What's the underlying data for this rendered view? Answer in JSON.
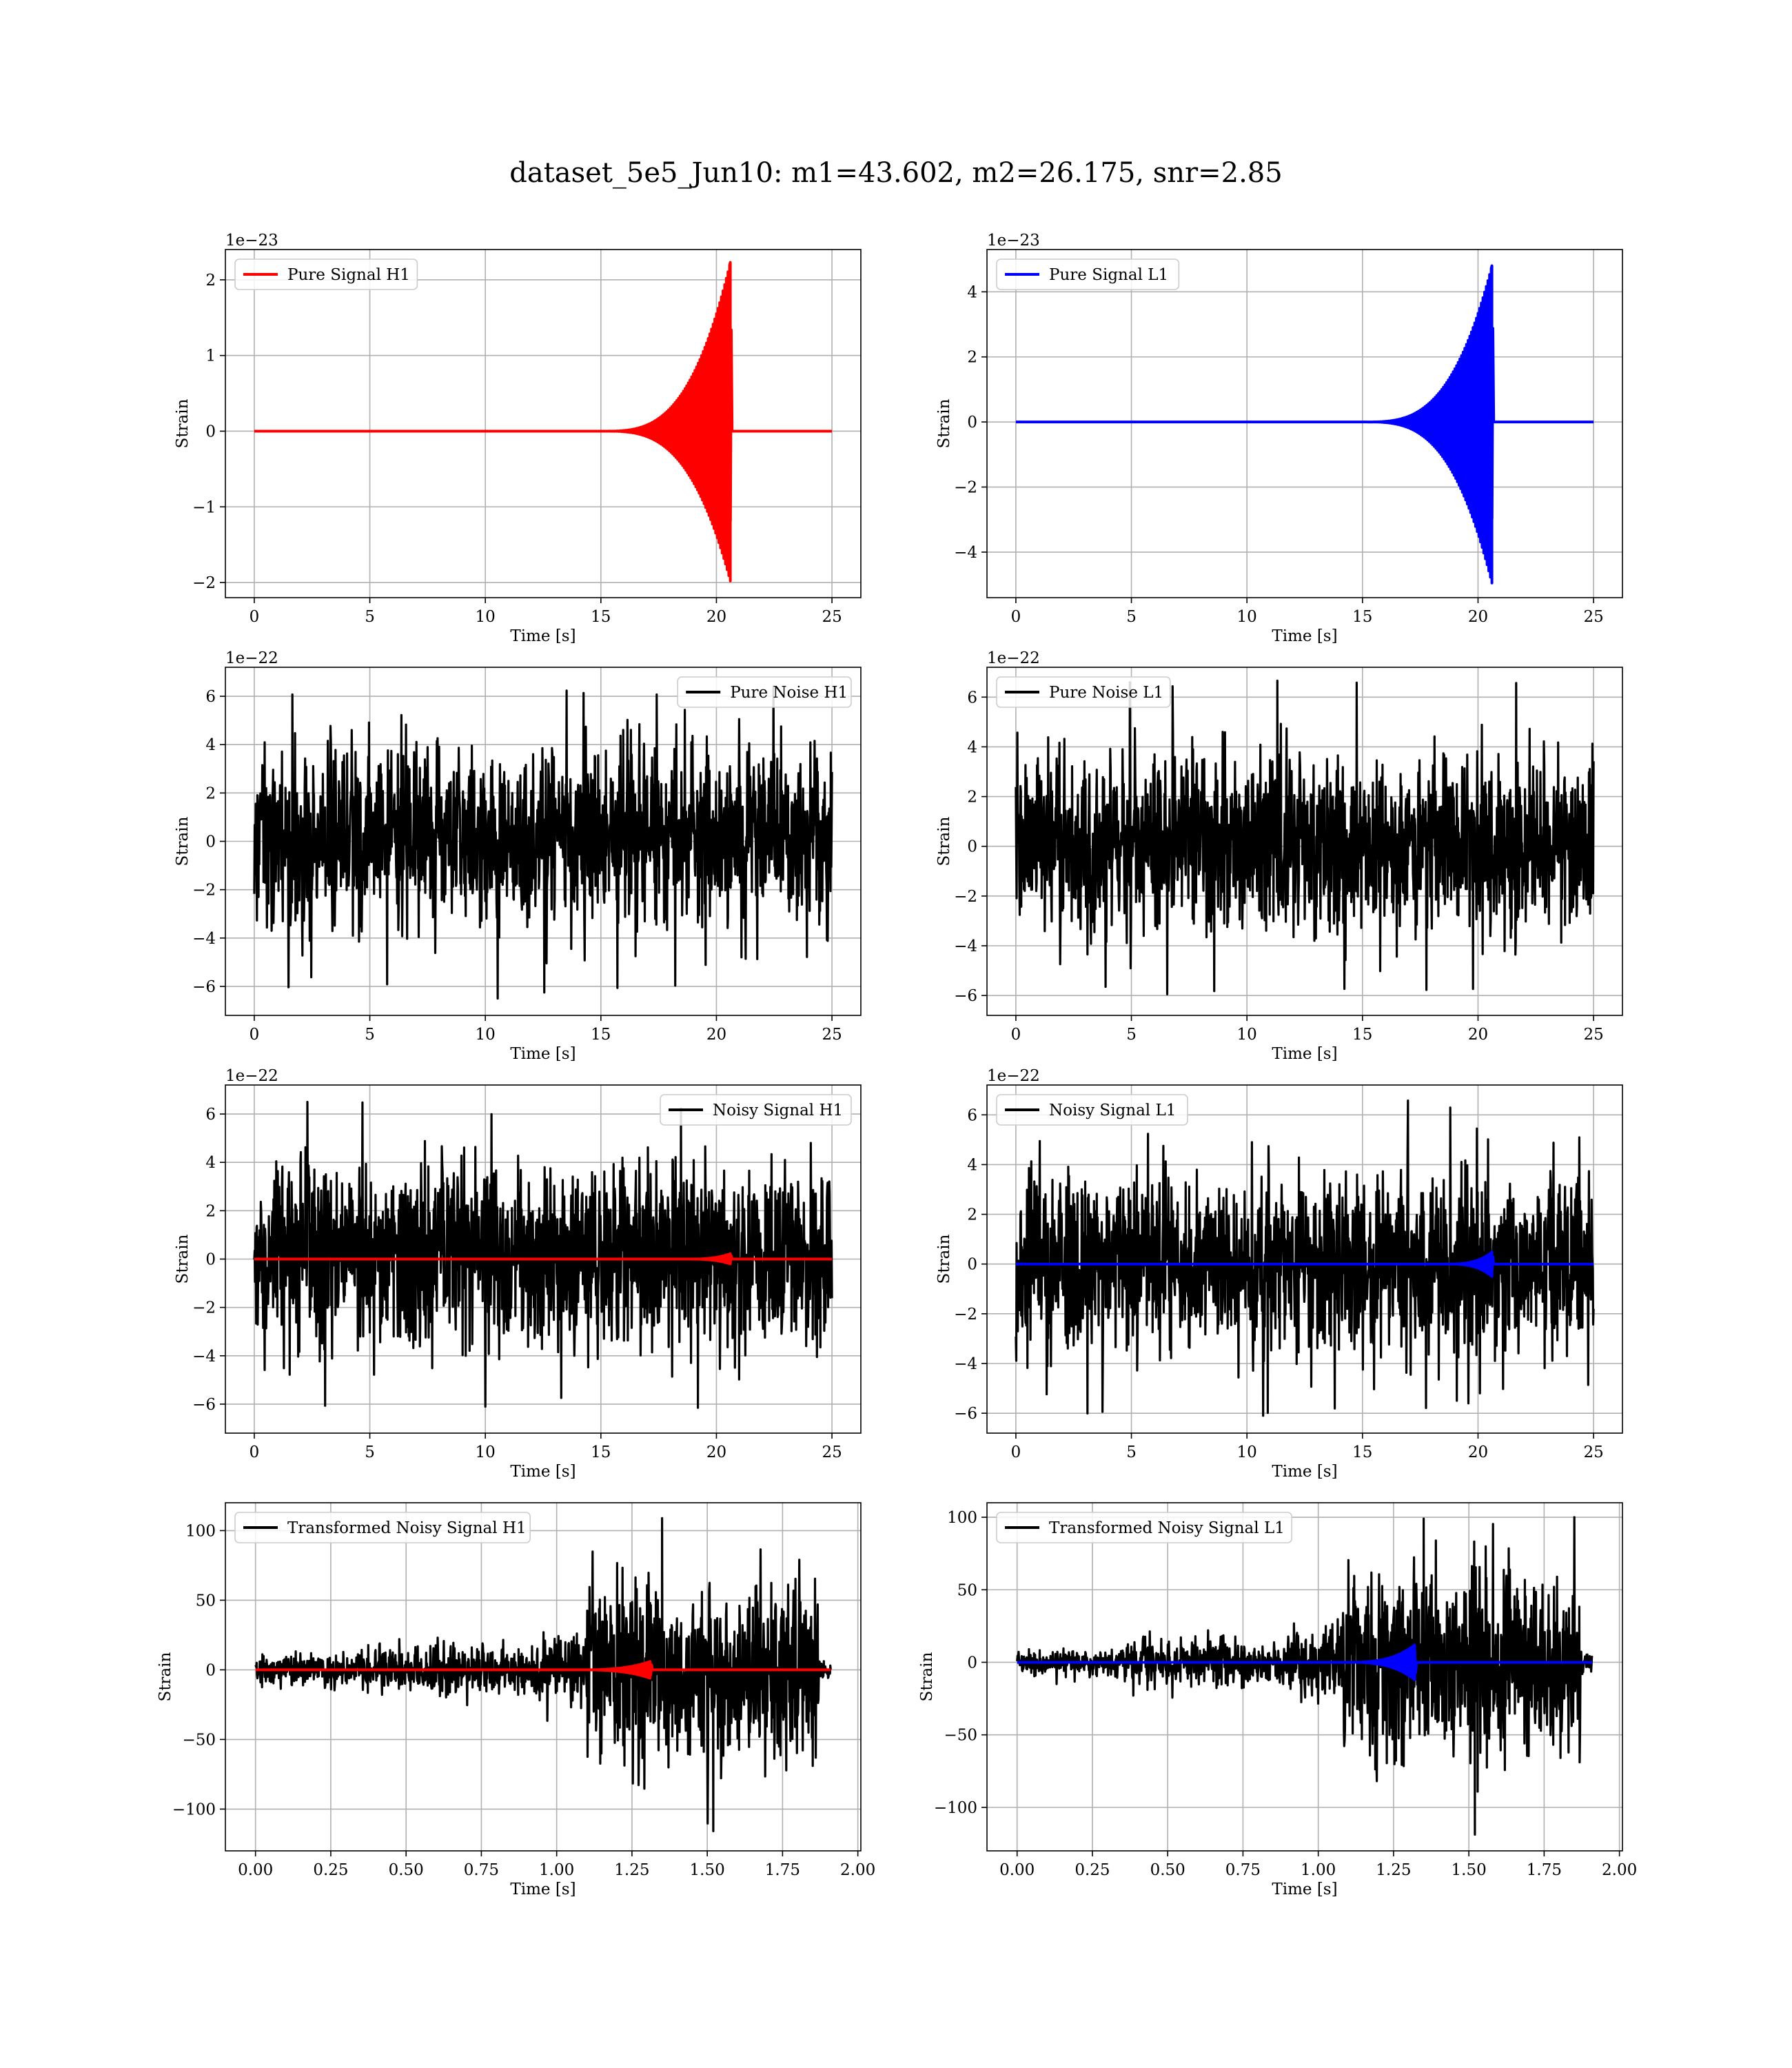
{
  "figure": {
    "title": "dataset_5e5_Jun10: m1=43.602, m2=26.175, snr=2.85"
  },
  "chart_data": [
    {
      "id": "pure-signal-h1",
      "type": "line",
      "xlabel": "Time [s]",
      "ylabel": "Strain",
      "offset_text": "1e−23",
      "legend": "top-left",
      "grid": true,
      "xlim": [
        -1.25,
        26.25
      ],
      "ylim": [
        -2.2,
        2.4
      ],
      "xticks": [
        0,
        5,
        10,
        15,
        20,
        25
      ],
      "xtick_labels": [
        "0",
        "5",
        "10",
        "15",
        "20",
        "25"
      ],
      "yticks": [
        -2,
        -1,
        0,
        1,
        2
      ],
      "ytick_labels": [
        "−2",
        "−1",
        "0",
        "1",
        "2"
      ],
      "series": [
        {
          "name": "Pure Signal H1",
          "color": "#ff0000",
          "style": "chirp",
          "t_start": 0,
          "t_end": 25,
          "t_merger": 20.6,
          "t_onset": 15.0,
          "peak_pos": 2.23,
          "peak_neg": -1.98
        }
      ]
    },
    {
      "id": "pure-signal-l1",
      "type": "line",
      "xlabel": "Time [s]",
      "ylabel": "Strain",
      "offset_text": "1e−23",
      "legend": "top-left",
      "grid": true,
      "xlim": [
        -1.25,
        26.25
      ],
      "ylim": [
        -5.4,
        5.3
      ],
      "xticks": [
        0,
        5,
        10,
        15,
        20,
        25
      ],
      "xtick_labels": [
        "0",
        "5",
        "10",
        "15",
        "20",
        "25"
      ],
      "yticks": [
        -4,
        -2,
        0,
        2,
        4
      ],
      "ytick_labels": [
        "−4",
        "−2",
        "0",
        "2",
        "4"
      ],
      "series": [
        {
          "name": "Pure Signal L1",
          "color": "#0000ff",
          "style": "chirp",
          "t_start": 0,
          "t_end": 25,
          "t_merger": 20.6,
          "t_onset": 15.0,
          "peak_pos": 4.8,
          "peak_neg": -4.95
        }
      ]
    },
    {
      "id": "pure-noise-h1",
      "type": "line",
      "xlabel": "Time [s]",
      "ylabel": "Strain",
      "offset_text": "1e−22",
      "legend": "top-right",
      "grid": true,
      "xlim": [
        -1.25,
        26.25
      ],
      "ylim": [
        -7.2,
        7.2
      ],
      "xticks": [
        0,
        5,
        10,
        15,
        20,
        25
      ],
      "xtick_labels": [
        "0",
        "5",
        "10",
        "15",
        "20",
        "25"
      ],
      "yticks": [
        -6,
        -4,
        -2,
        0,
        2,
        4,
        6
      ],
      "ytick_labels": [
        "−6",
        "−4",
        "−2",
        "0",
        "2",
        "4",
        "6"
      ],
      "series": [
        {
          "name": "Pure Noise H1",
          "color": "#000000",
          "style": "noise",
          "t_start": 0,
          "t_end": 25,
          "band": [
            -3.9,
            4.2
          ],
          "peak_pos": 6.6,
          "peak_neg": -6.5
        }
      ]
    },
    {
      "id": "pure-noise-l1",
      "type": "line",
      "xlabel": "Time [s]",
      "ylabel": "Strain",
      "offset_text": "1e−22",
      "legend": "top-left",
      "grid": true,
      "xlim": [
        -1.25,
        26.25
      ],
      "ylim": [
        -6.8,
        7.2
      ],
      "xticks": [
        0,
        5,
        10,
        15,
        20,
        25
      ],
      "xtick_labels": [
        "0",
        "5",
        "10",
        "15",
        "20",
        "25"
      ],
      "yticks": [
        -6,
        -4,
        -2,
        0,
        2,
        4,
        6
      ],
      "ytick_labels": [
        "−6",
        "−4",
        "−2",
        "0",
        "2",
        "4",
        "6"
      ],
      "series": [
        {
          "name": "Pure Noise L1",
          "color": "#000000",
          "style": "noise",
          "t_start": 0,
          "t_end": 25,
          "band": [
            -3.8,
            3.9
          ],
          "peak_pos": 6.9,
          "peak_neg": -6.1
        }
      ]
    },
    {
      "id": "noisy-signal-h1",
      "type": "line",
      "xlabel": "Time [s]",
      "ylabel": "Strain",
      "offset_text": "1e−22",
      "legend": "top-right",
      "grid": true,
      "xlim": [
        -1.25,
        26.25
      ],
      "ylim": [
        -7.2,
        7.2
      ],
      "xticks": [
        0,
        5,
        10,
        15,
        20,
        25
      ],
      "xtick_labels": [
        "0",
        "5",
        "10",
        "15",
        "20",
        "25"
      ],
      "yticks": [
        -6,
        -4,
        -2,
        0,
        2,
        4,
        6
      ],
      "ytick_labels": [
        "−6",
        "−4",
        "−2",
        "0",
        "2",
        "4",
        "6"
      ],
      "series": [
        {
          "name": "Noisy Signal H1",
          "color": "#000000",
          "style": "noise",
          "t_start": 0,
          "t_end": 25,
          "band": [
            -3.9,
            4.2
          ],
          "peak_pos": 6.6,
          "peak_neg": -6.5
        },
        {
          "name": "",
          "color": "#ff0000",
          "style": "chirp",
          "t_start": 0,
          "t_end": 25,
          "t_merger": 20.6,
          "t_onset": 18.5,
          "peak_pos": 0.22,
          "peak_neg": -0.2
        }
      ]
    },
    {
      "id": "noisy-signal-l1",
      "type": "line",
      "xlabel": "Time [s]",
      "ylabel": "Strain",
      "offset_text": "1e−22",
      "legend": "top-left",
      "grid": true,
      "xlim": [
        -1.25,
        26.25
      ],
      "ylim": [
        -6.8,
        7.2
      ],
      "xticks": [
        0,
        5,
        10,
        15,
        20,
        25
      ],
      "xtick_labels": [
        "0",
        "5",
        "10",
        "15",
        "20",
        "25"
      ],
      "yticks": [
        -6,
        -4,
        -2,
        0,
        2,
        4,
        6
      ],
      "ytick_labels": [
        "−6",
        "−4",
        "−2",
        "0",
        "2",
        "4",
        "6"
      ],
      "series": [
        {
          "name": "Noisy Signal L1",
          "color": "#000000",
          "style": "noise",
          "t_start": 0,
          "t_end": 25,
          "band": [
            -3.8,
            3.9
          ],
          "peak_pos": 6.9,
          "peak_neg": -6.1
        },
        {
          "name": "",
          "color": "#0000ff",
          "style": "chirp",
          "t_start": 0,
          "t_end": 25,
          "t_merger": 20.6,
          "t_onset": 18.5,
          "peak_pos": 0.48,
          "peak_neg": -0.5
        }
      ]
    },
    {
      "id": "transformed-noisy-signal-h1",
      "type": "line",
      "xlabel": "Time [s]",
      "ylabel": "Strain",
      "offset_text": "",
      "legend": "top-left",
      "grid": true,
      "xlim": [
        -0.1,
        2.01
      ],
      "ylim": [
        -130,
        120
      ],
      "xticks": [
        0.0,
        0.25,
        0.5,
        0.75,
        1.0,
        1.25,
        1.5,
        1.75,
        2.0
      ],
      "xtick_labels": [
        "0.00",
        "0.25",
        "0.50",
        "0.75",
        "1.00",
        "1.25",
        "1.50",
        "1.75",
        "2.00"
      ],
      "yticks": [
        -100,
        -50,
        0,
        50,
        100
      ],
      "ytick_labels": [
        "−100",
        "−50",
        "0",
        "50",
        "100"
      ],
      "series": [
        {
          "name": "Transformed Noisy Signal H1",
          "color": "#000000",
          "style": "tnoise",
          "t_start": 0,
          "t_end": 1.91,
          "segments": [
            [
              0.0,
              0.35,
              9
            ],
            [
              0.35,
              0.92,
              15
            ],
            [
              0.92,
              1.1,
              24
            ],
            [
              1.1,
              1.87,
              60
            ],
            [
              1.87,
              1.91,
              6
            ]
          ],
          "peak_pos": 110,
          "peak_neg": -117
        },
        {
          "name": "",
          "color": "#ff0000",
          "style": "chirp",
          "t_start": 0,
          "t_end": 1.91,
          "t_merger": 1.31,
          "t_onset": 1.05,
          "peak_pos": 6,
          "peak_neg": -6
        }
      ]
    },
    {
      "id": "transformed-noisy-signal-l1",
      "type": "line",
      "xlabel": "Time [s]",
      "ylabel": "Strain",
      "offset_text": "",
      "legend": "top-left",
      "grid": true,
      "xlim": [
        -0.1,
        2.01
      ],
      "ylim": [
        -130,
        110
      ],
      "xticks": [
        0.0,
        0.25,
        0.5,
        0.75,
        1.0,
        1.25,
        1.5,
        1.75,
        2.0
      ],
      "xtick_labels": [
        "0.00",
        "0.25",
        "0.50",
        "0.75",
        "1.00",
        "1.25",
        "1.50",
        "1.75",
        "2.00"
      ],
      "yticks": [
        -100,
        -50,
        0,
        50,
        100
      ],
      "ytick_labels": [
        "−100",
        "−50",
        "0",
        "50",
        "100"
      ],
      "series": [
        {
          "name": "Transformed Noisy Signal L1",
          "color": "#000000",
          "style": "tnoise",
          "t_start": 0,
          "t_end": 1.91,
          "segments": [
            [
              0.0,
              0.35,
              8
            ],
            [
              0.35,
              0.92,
              14
            ],
            [
              0.92,
              1.08,
              22
            ],
            [
              1.08,
              1.87,
              58
            ],
            [
              1.87,
              1.91,
              6
            ]
          ],
          "peak_pos": 100,
          "peak_neg": -120
        },
        {
          "name": "",
          "color": "#0000ff",
          "style": "chirp",
          "t_start": 0,
          "t_end": 1.91,
          "t_merger": 1.32,
          "t_onset": 1.08,
          "peak_pos": 12,
          "peak_neg": -12
        }
      ]
    }
  ]
}
